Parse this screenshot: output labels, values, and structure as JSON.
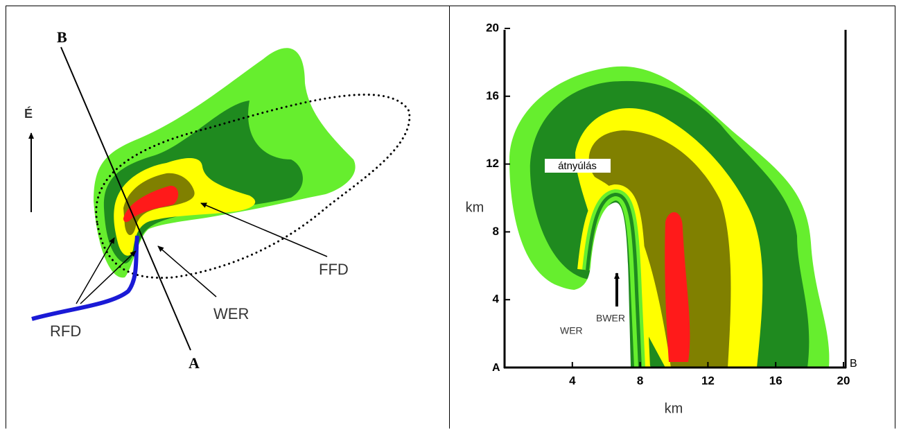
{
  "left_panel": {
    "labels": {
      "point_b": "B",
      "point_a": "A",
      "north": "É",
      "rfd": "RFD",
      "wer": "WER",
      "ffd": "FFD"
    }
  },
  "right_panel": {
    "x_axis": {
      "label": "km",
      "ticks": [
        4,
        8,
        12,
        16,
        20
      ]
    },
    "y_axis": {
      "label": "km",
      "ticks": [
        4,
        8,
        12,
        16,
        20
      ]
    },
    "labels": {
      "point_a": "A",
      "point_b": "B",
      "overhang": "átnyúlás",
      "wer": "WER",
      "bwer": "BWER"
    }
  }
}
